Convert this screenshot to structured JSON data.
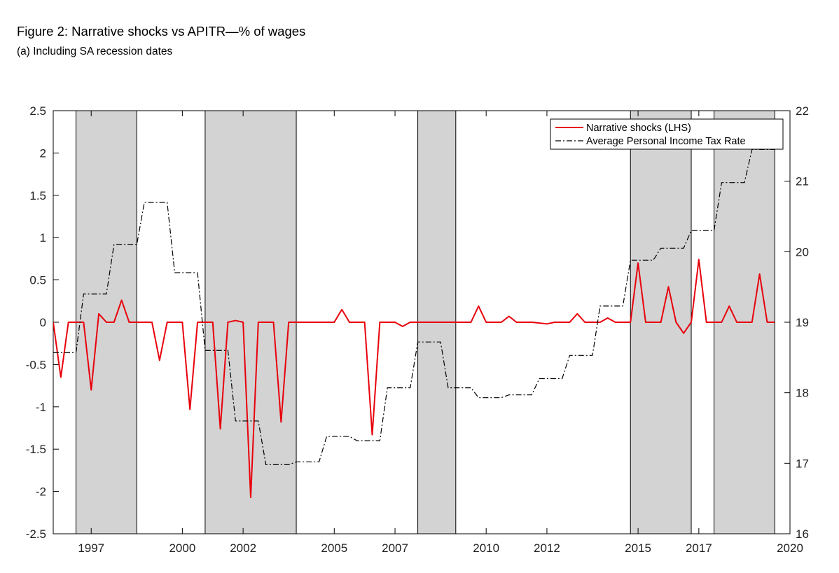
{
  "figure": {
    "title": "Figure 2: Narrative shocks vs APITR—% of wages",
    "subtitle": "(a) Including SA recession dates"
  },
  "chart_data": {
    "type": "line",
    "x_ticks": [
      1997,
      2000,
      2002,
      2005,
      2007,
      2010,
      2012,
      2015,
      2017,
      2020
    ],
    "x_tick_labels": [
      "1997",
      "2000",
      "2002",
      "2005",
      "2007",
      "2010",
      "2012",
      "2015",
      "2017",
      "2020"
    ],
    "xlim": [
      1995.75,
      2020.0
    ],
    "ylim_left": [
      -2.5,
      2.5
    ],
    "left_ticks": [
      -2.5,
      -2,
      -1.5,
      -1,
      -0.5,
      0,
      0.5,
      1,
      1.5,
      2,
      2.5
    ],
    "left_tick_labels": [
      "-2.5",
      "-2",
      "-1.5",
      "-1",
      "-0.5",
      "0",
      "0.5",
      "1",
      "1.5",
      "2",
      "2.5"
    ],
    "ylim_right": [
      16,
      22
    ],
    "right_ticks": [
      16,
      17,
      18,
      19,
      20,
      21,
      22
    ],
    "right_tick_labels": [
      "16",
      "17",
      "18",
      "19",
      "20",
      "21",
      "22"
    ],
    "grid": false,
    "legend_position": "top-right",
    "recession_periods": [
      [
        1996.5,
        1998.5
      ],
      [
        2000.75,
        2003.75
      ],
      [
        2007.75,
        2009.0
      ],
      [
        2014.75,
        2016.75
      ],
      [
        2017.5,
        2019.5
      ]
    ],
    "series": [
      {
        "name": "Narrative shocks (LHS)",
        "axis": "left",
        "color": "#e8000b",
        "style": "solid",
        "points": [
          [
            1995.75,
            0
          ],
          [
            1996.0,
            -0.65
          ],
          [
            1996.25,
            0
          ],
          [
            1996.5,
            0
          ],
          [
            1996.75,
            0
          ],
          [
            1997.0,
            -0.8
          ],
          [
            1997.25,
            0.1
          ],
          [
            1997.5,
            0
          ],
          [
            1997.75,
            0
          ],
          [
            1998.0,
            0.26
          ],
          [
            1998.25,
            0
          ],
          [
            1998.5,
            0
          ],
          [
            1998.75,
            0
          ],
          [
            1999.0,
            0
          ],
          [
            1999.25,
            -0.45
          ],
          [
            1999.5,
            0
          ],
          [
            1999.75,
            0
          ],
          [
            2000.0,
            0
          ],
          [
            2000.25,
            -1.03
          ],
          [
            2000.5,
            0
          ],
          [
            2000.75,
            0
          ],
          [
            2001.0,
            0
          ],
          [
            2001.25,
            -1.26
          ],
          [
            2001.5,
            0
          ],
          [
            2001.75,
            0.02
          ],
          [
            2002.0,
            0
          ],
          [
            2002.25,
            -2.07
          ],
          [
            2002.5,
            0
          ],
          [
            2002.75,
            0
          ],
          [
            2003.0,
            0
          ],
          [
            2003.25,
            -1.18
          ],
          [
            2003.5,
            0
          ],
          [
            2003.75,
            0
          ],
          [
            2004.0,
            0
          ],
          [
            2004.5,
            0
          ],
          [
            2005.0,
            0
          ],
          [
            2005.25,
            0.15
          ],
          [
            2005.5,
            0
          ],
          [
            2006.0,
            0
          ],
          [
            2006.25,
            -1.33
          ],
          [
            2006.5,
            0
          ],
          [
            2006.75,
            0
          ],
          [
            2007.0,
            0
          ],
          [
            2007.25,
            -0.05
          ],
          [
            2007.5,
            0
          ],
          [
            2008.0,
            0
          ],
          [
            2008.5,
            0
          ],
          [
            2009.0,
            0
          ],
          [
            2009.5,
            0
          ],
          [
            2009.75,
            0.19
          ],
          [
            2010.0,
            0
          ],
          [
            2010.5,
            0
          ],
          [
            2010.75,
            0.07
          ],
          [
            2011.0,
            0
          ],
          [
            2011.5,
            0
          ],
          [
            2012.0,
            -0.02
          ],
          [
            2012.25,
            0
          ],
          [
            2012.75,
            0
          ],
          [
            2013.0,
            0.1
          ],
          [
            2013.25,
            0
          ],
          [
            2013.75,
            0
          ],
          [
            2014.0,
            0.05
          ],
          [
            2014.25,
            0
          ],
          [
            2014.5,
            0
          ],
          [
            2014.75,
            0
          ],
          [
            2015.0,
            0.7
          ],
          [
            2015.25,
            0
          ],
          [
            2015.5,
            0
          ],
          [
            2015.75,
            0
          ],
          [
            2016.0,
            0.42
          ],
          [
            2016.25,
            0
          ],
          [
            2016.5,
            -0.13
          ],
          [
            2016.75,
            0
          ],
          [
            2017.0,
            0.74
          ],
          [
            2017.25,
            0
          ],
          [
            2017.5,
            0
          ],
          [
            2017.75,
            0
          ],
          [
            2018.0,
            0.19
          ],
          [
            2018.25,
            0
          ],
          [
            2018.5,
            0
          ],
          [
            2018.75,
            0
          ],
          [
            2019.0,
            0.57
          ],
          [
            2019.25,
            0
          ],
          [
            2019.5,
            0
          ]
        ]
      },
      {
        "name": "Average Personal Income Tax Rate",
        "axis": "right",
        "color": "#000000",
        "style": "dash-dot",
        "points": [
          [
            1995.75,
            18.57
          ],
          [
            1996.5,
            18.57
          ],
          [
            1996.75,
            19.4
          ],
          [
            1997.5,
            19.4
          ],
          [
            1997.75,
            20.1
          ],
          [
            1998.5,
            20.1
          ],
          [
            1998.75,
            20.7
          ],
          [
            1999.5,
            20.7
          ],
          [
            1999.75,
            19.7
          ],
          [
            2000.5,
            19.7
          ],
          [
            2000.75,
            18.6
          ],
          [
            2001.5,
            18.6
          ],
          [
            2001.75,
            17.6
          ],
          [
            2002.5,
            17.6
          ],
          [
            2002.75,
            16.98
          ],
          [
            2003.5,
            16.98
          ],
          [
            2003.75,
            17.02
          ],
          [
            2004.5,
            17.02
          ],
          [
            2004.75,
            17.38
          ],
          [
            2005.5,
            17.38
          ],
          [
            2005.75,
            17.32
          ],
          [
            2006.5,
            17.32
          ],
          [
            2006.75,
            18.07
          ],
          [
            2007.5,
            18.07
          ],
          [
            2007.75,
            18.72
          ],
          [
            2008.5,
            18.72
          ],
          [
            2008.75,
            18.07
          ],
          [
            2009.5,
            18.07
          ],
          [
            2009.75,
            17.93
          ],
          [
            2010.5,
            17.93
          ],
          [
            2010.75,
            17.97
          ],
          [
            2011.5,
            17.97
          ],
          [
            2011.75,
            18.2
          ],
          [
            2012.5,
            18.2
          ],
          [
            2012.75,
            18.53
          ],
          [
            2013.5,
            18.53
          ],
          [
            2013.75,
            19.23
          ],
          [
            2014.5,
            19.23
          ],
          [
            2014.75,
            19.88
          ],
          [
            2015.5,
            19.88
          ],
          [
            2015.75,
            20.05
          ],
          [
            2016.5,
            20.05
          ],
          [
            2016.75,
            20.3
          ],
          [
            2017.5,
            20.3
          ],
          [
            2017.75,
            20.98
          ],
          [
            2018.5,
            20.98
          ],
          [
            2018.75,
            21.45
          ],
          [
            2019.5,
            21.45
          ]
        ]
      }
    ]
  }
}
